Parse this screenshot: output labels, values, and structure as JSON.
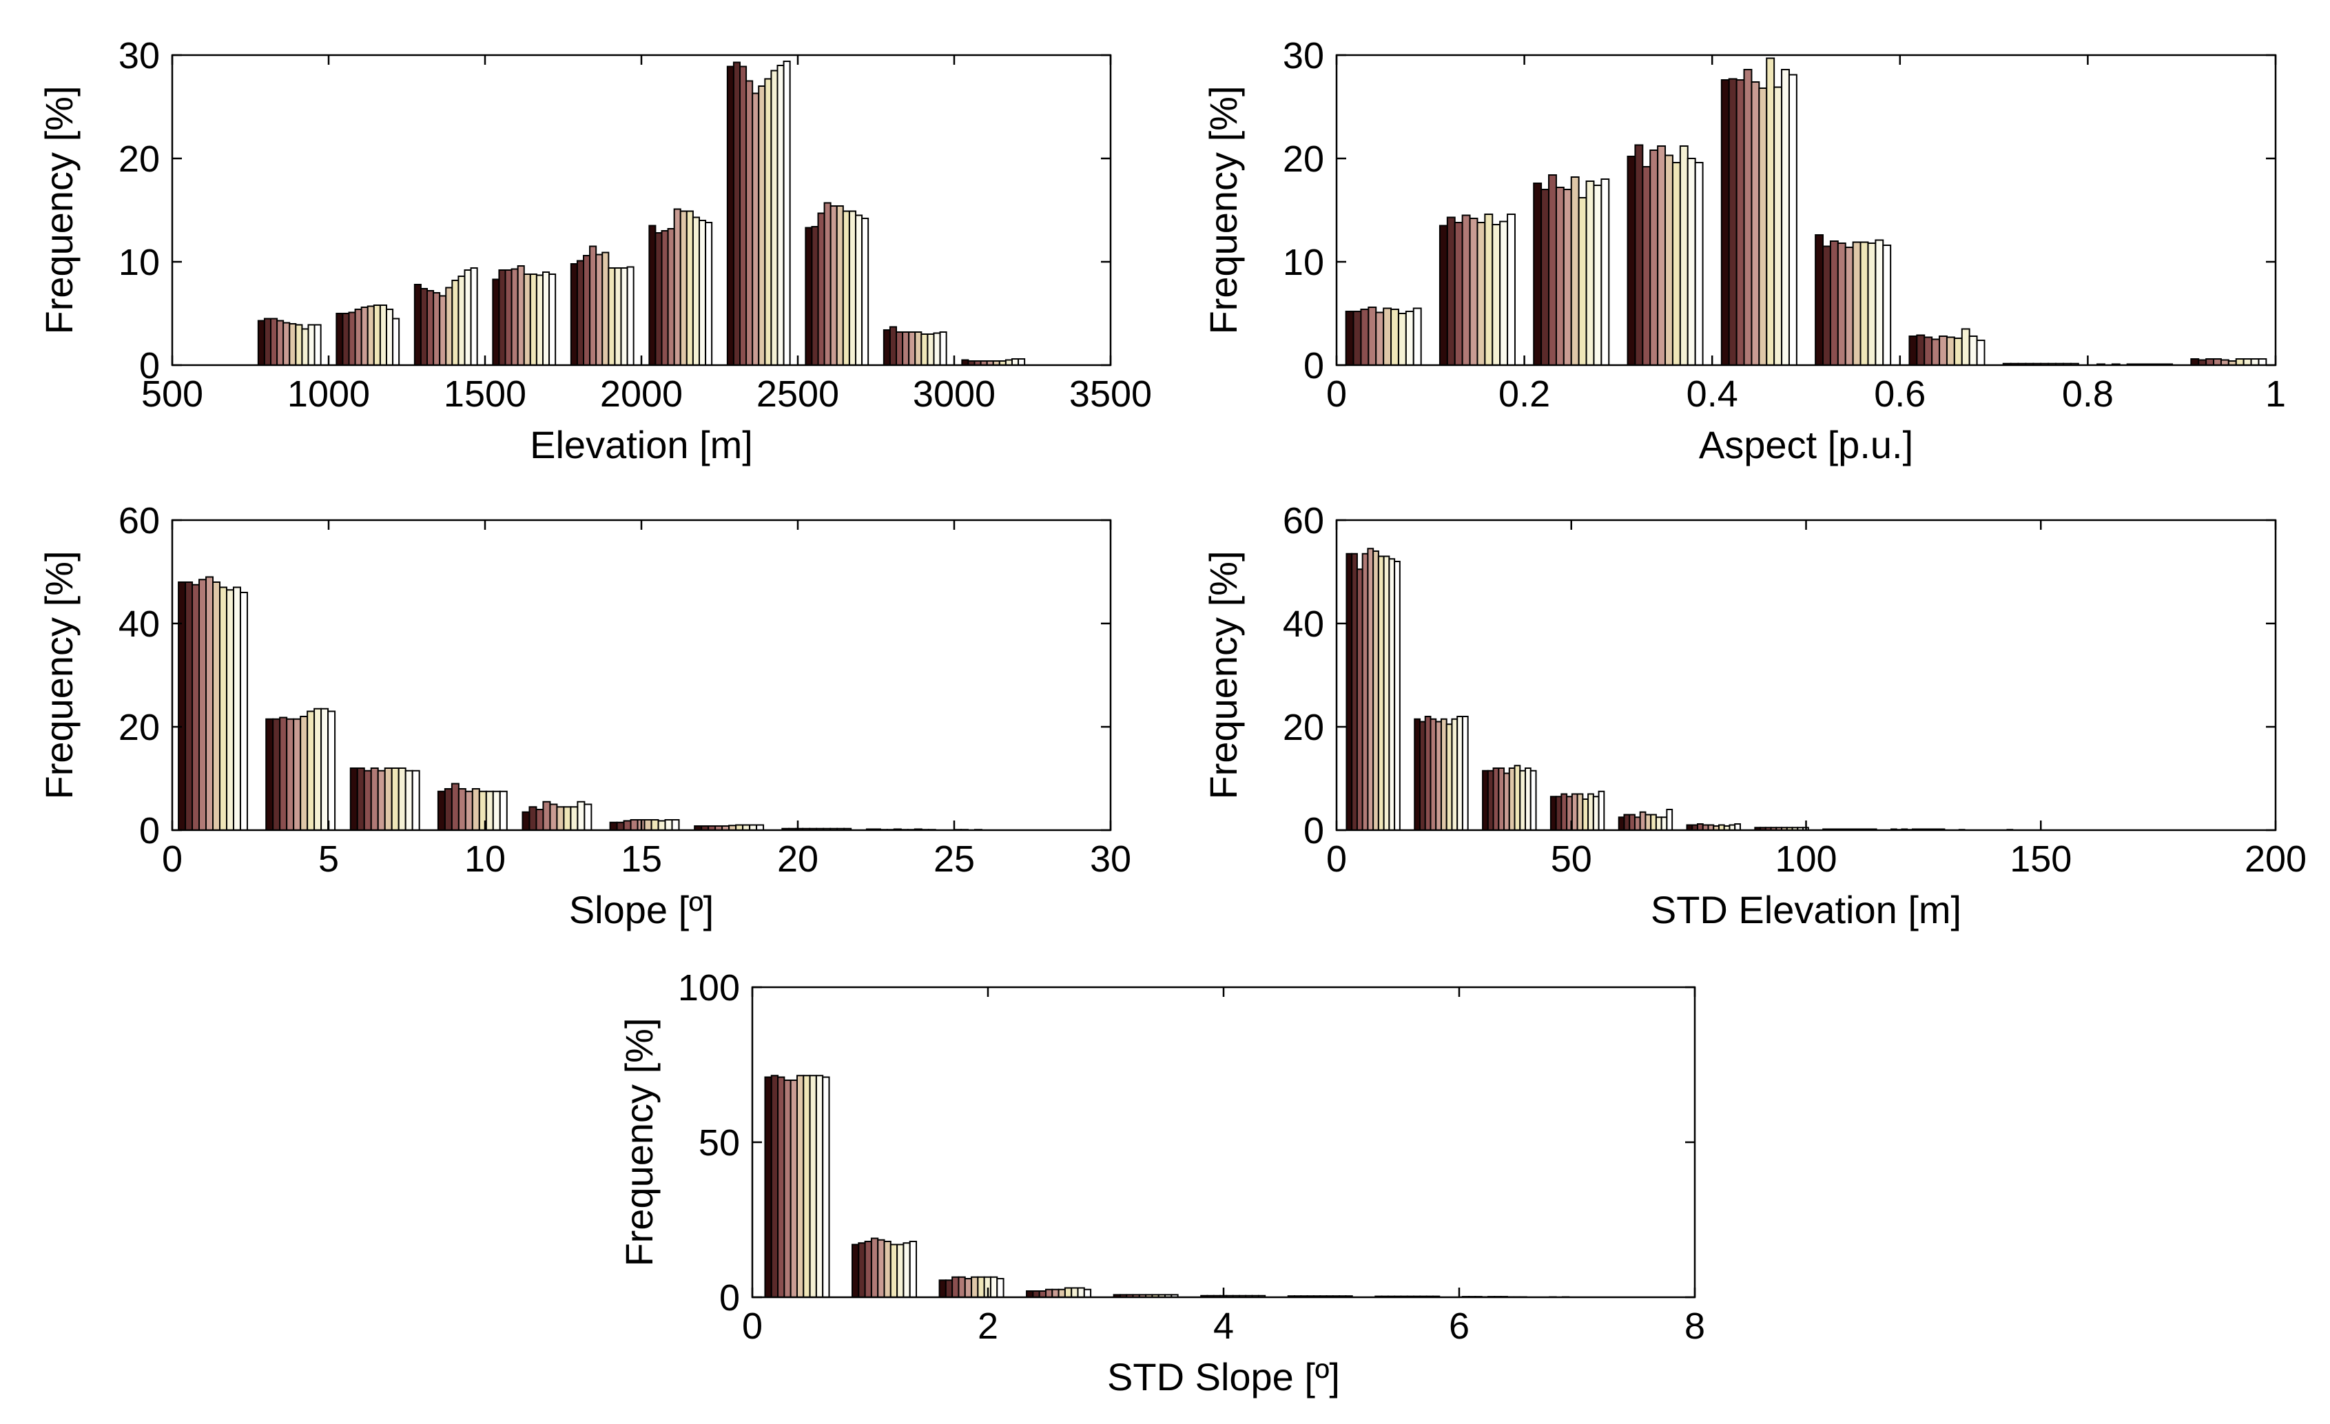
{
  "series_colors": [
    "#2a0808",
    "#5a2a2a",
    "#8a4f4f",
    "#b07a76",
    "#c99c93",
    "#dfc7a8",
    "#efe6b8",
    "#f5f1d4",
    "#fbfaee",
    "#ffffff"
  ],
  "chart_data": [
    {
      "id": "elevation",
      "type": "bar",
      "xlabel": "Elevation [m]",
      "ylabel": "Frequency [%]",
      "xlim": [
        500,
        3500
      ],
      "ylim": [
        0,
        30
      ],
      "xticks": [
        500,
        1000,
        1500,
        2000,
        2500,
        3000,
        3500
      ],
      "xtick_labels": [
        "500",
        "1000",
        "1500",
        "2000",
        "2500",
        "3000",
        "3500"
      ],
      "yticks": [
        0,
        10,
        20,
        30
      ],
      "ytick_labels": [
        "0",
        "10",
        "20",
        "30"
      ],
      "bin_width": 250,
      "bins": [
        {
          "center": 875,
          "values": [
            4.3,
            4.5,
            4.5,
            4.3,
            4.1,
            4.0,
            3.9,
            3.5,
            3.9,
            3.9
          ]
        },
        {
          "center": 1125,
          "values": [
            5.0,
            5.0,
            5.1,
            5.4,
            5.6,
            5.7,
            5.8,
            5.8,
            5.4,
            4.5
          ]
        },
        {
          "center": 1375,
          "values": [
            7.8,
            7.4,
            7.2,
            7.0,
            6.7,
            7.5,
            8.2,
            8.6,
            9.2,
            9.4
          ]
        },
        {
          "center": 1625,
          "values": [
            8.3,
            9.2,
            9.2,
            9.3,
            9.6,
            8.8,
            8.8,
            8.7,
            9.0,
            8.8
          ]
        },
        {
          "center": 1875,
          "values": [
            9.8,
            10.1,
            10.6,
            11.5,
            10.7,
            10.9,
            9.4,
            9.4,
            9.4,
            9.5
          ]
        },
        {
          "center": 2125,
          "values": [
            13.5,
            12.8,
            13.0,
            13.2,
            15.1,
            14.9,
            14.9,
            14.3,
            14.0,
            13.8
          ]
        },
        {
          "center": 2375,
          "values": [
            28.9,
            29.3,
            28.9,
            27.5,
            26.3,
            27.0,
            27.7,
            28.5,
            29.0,
            29.4
          ]
        },
        {
          "center": 2625,
          "values": [
            13.3,
            13.4,
            14.7,
            15.7,
            15.4,
            15.4,
            14.9,
            14.9,
            14.5,
            14.2
          ]
        },
        {
          "center": 2875,
          "values": [
            3.4,
            3.7,
            3.2,
            3.2,
            3.2,
            3.2,
            3.0,
            3.0,
            3.1,
            3.2
          ]
        },
        {
          "center": 3125,
          "values": [
            0.5,
            0.4,
            0.4,
            0.4,
            0.4,
            0.4,
            0.4,
            0.5,
            0.6,
            0.6
          ]
        }
      ]
    },
    {
      "id": "aspect",
      "type": "bar",
      "xlabel": "Aspect [p.u.]",
      "ylabel": "Frequency [%]",
      "xlim": [
        0,
        1
      ],
      "ylim": [
        0,
        30
      ],
      "xticks": [
        0,
        0.2,
        0.4,
        0.6,
        0.8,
        1
      ],
      "xtick_labels": [
        "0",
        "0.2",
        "0.4",
        "0.6",
        "0.8",
        "1"
      ],
      "yticks": [
        0,
        10,
        20,
        30
      ],
      "ytick_labels": [
        "0",
        "10",
        "20",
        "30"
      ],
      "bin_width": 0.1,
      "bins": [
        {
          "center": 0.05,
          "values": [
            5.2,
            5.2,
            5.4,
            5.6,
            5.1,
            5.5,
            5.4,
            5.0,
            5.2,
            5.5
          ]
        },
        {
          "center": 0.15,
          "values": [
            13.5,
            14.3,
            13.8,
            14.5,
            14.2,
            13.8,
            14.6,
            13.6,
            13.9,
            14.6
          ]
        },
        {
          "center": 0.25,
          "values": [
            17.6,
            17.0,
            18.4,
            17.2,
            17.0,
            18.2,
            16.2,
            17.8,
            17.4,
            18.0
          ]
        },
        {
          "center": 0.35,
          "values": [
            20.2,
            21.3,
            19.2,
            20.8,
            21.2,
            20.3,
            19.6,
            21.2,
            20.0,
            19.6
          ]
        },
        {
          "center": 0.45,
          "values": [
            27.6,
            27.7,
            27.6,
            28.6,
            27.4,
            26.8,
            29.7,
            26.9,
            28.6,
            28.1
          ]
        },
        {
          "center": 0.55,
          "values": [
            12.6,
            11.5,
            12.0,
            11.8,
            11.4,
            11.9,
            11.9,
            11.8,
            12.1,
            11.6
          ]
        },
        {
          "center": 0.65,
          "values": [
            2.8,
            2.9,
            2.7,
            2.5,
            2.8,
            2.7,
            2.6,
            3.5,
            2.8,
            2.4
          ]
        },
        {
          "center": 0.75,
          "values": [
            0.15,
            0.15,
            0.15,
            0.15,
            0.15,
            0.15,
            0.15,
            0.15,
            0.15,
            0.15
          ]
        },
        {
          "center": 0.85,
          "values": [
            0.1,
            0.0,
            0.1,
            0.0,
            0.1,
            0.1,
            0.1,
            0.1,
            0.1,
            0.1
          ]
        },
        {
          "center": 0.95,
          "values": [
            0.6,
            0.5,
            0.6,
            0.6,
            0.5,
            0.4,
            0.6,
            0.6,
            0.6,
            0.6
          ]
        }
      ]
    },
    {
      "id": "slope",
      "type": "bar",
      "xlabel": "Slope [º]",
      "ylabel": "Frequency [%]",
      "xlim": [
        0,
        30
      ],
      "ylim": [
        0,
        60
      ],
      "xticks": [
        0,
        5,
        10,
        15,
        20,
        25,
        30
      ],
      "xtick_labels": [
        "0",
        "5",
        "10",
        "15",
        "20",
        "25",
        "30"
      ],
      "yticks": [
        0,
        20,
        40,
        60
      ],
      "ytick_labels": [
        "0",
        "20",
        "40",
        "60"
      ],
      "bin_width": 2.75,
      "bins": [
        {
          "center": 1.3,
          "values": [
            48,
            48,
            47.5,
            48.5,
            49,
            48,
            47,
            46.5,
            47,
            46
          ]
        },
        {
          "center": 4.1,
          "values": [
            21.5,
            21.5,
            21.8,
            21.5,
            21.5,
            22,
            23,
            23.5,
            23.5,
            23
          ]
        },
        {
          "center": 6.8,
          "values": [
            12,
            12,
            11.5,
            12,
            11.5,
            12,
            12,
            12,
            11.5,
            11.5
          ]
        },
        {
          "center": 9.6,
          "values": [
            7.5,
            8,
            9,
            8,
            7.5,
            8,
            7.5,
            7.5,
            7.5,
            7.5
          ]
        },
        {
          "center": 12.3,
          "values": [
            3.5,
            4.5,
            4,
            5.5,
            5,
            4.5,
            4.5,
            4.5,
            5.5,
            5
          ]
        },
        {
          "center": 15.1,
          "values": [
            1.5,
            1.5,
            1.8,
            2,
            2,
            2,
            2,
            1.8,
            2,
            2
          ]
        },
        {
          "center": 17.8,
          "values": [
            0.8,
            0.8,
            0.8,
            0.8,
            0.8,
            0.9,
            1,
            1,
            1,
            1
          ]
        },
        {
          "center": 20.6,
          "values": [
            0.3,
            0.3,
            0.3,
            0.3,
            0.3,
            0.3,
            0.3,
            0.3,
            0.3,
            0.3
          ]
        },
        {
          "center": 23.3,
          "values": [
            0.2,
            0.2,
            0.1,
            0.1,
            0.2,
            0.1,
            0.1,
            0.2,
            0.1,
            0.1
          ]
        },
        {
          "center": 26.1,
          "values": [
            0.1,
            0.1,
            0.0,
            0.1,
            0.0,
            0.0,
            0.0,
            0.0,
            0.0,
            0.0
          ]
        }
      ]
    },
    {
      "id": "std_elevation",
      "type": "bar",
      "xlabel": "STD Elevation [m]",
      "ylabel": "Frequency [%]",
      "xlim": [
        0,
        200
      ],
      "ylim": [
        0,
        60
      ],
      "xticks": [
        0,
        50,
        100,
        150,
        200
      ],
      "xtick_labels": [
        "0",
        "50",
        "100",
        "150",
        "200"
      ],
      "yticks": [
        0,
        20,
        40,
        60
      ],
      "ytick_labels": [
        "0",
        "20",
        "40",
        "60"
      ],
      "bin_width": 14.2,
      "bins": [
        {
          "center": 7.8,
          "values": [
            53.5,
            53.5,
            50.5,
            53.5,
            54.5,
            54,
            53,
            53,
            52.5,
            52
          ]
        },
        {
          "center": 22.3,
          "values": [
            21.5,
            21,
            22,
            21.5,
            21,
            21.5,
            20.5,
            21.5,
            22,
            22
          ]
        },
        {
          "center": 36.8,
          "values": [
            11.5,
            11.5,
            12,
            12,
            11,
            12,
            12.5,
            11.5,
            12,
            11.5
          ]
        },
        {
          "center": 51.3,
          "values": [
            6.5,
            6.5,
            7,
            6.5,
            7,
            7,
            6,
            7,
            6.5,
            7.5
          ]
        },
        {
          "center": 65.8,
          "values": [
            2.5,
            3,
            3,
            2.5,
            3.5,
            3,
            3,
            2.5,
            2.5,
            4
          ]
        },
        {
          "center": 80.3,
          "values": [
            1,
            1,
            1.2,
            1,
            1,
            0.8,
            1,
            0.8,
            1,
            1.2
          ]
        },
        {
          "center": 94.8,
          "values": [
            0.5,
            0.5,
            0.5,
            0.5,
            0.5,
            0.5,
            0.5,
            0.5,
            0.5,
            0.5
          ]
        },
        {
          "center": 109.3,
          "values": [
            0.2,
            0.2,
            0.2,
            0.2,
            0.2,
            0.2,
            0.2,
            0.2,
            0.2,
            0.2
          ]
        },
        {
          "center": 123.8,
          "values": [
            0.2,
            0.1,
            0.2,
            0.1,
            0.2,
            0.2,
            0.2,
            0.2,
            0.2,
            0.2
          ]
        },
        {
          "center": 138.3,
          "values": [
            0.1,
            0.0,
            0.0,
            0.0,
            0.0,
            0.0,
            0.0,
            0.0,
            0.0,
            0.1
          ]
        }
      ]
    },
    {
      "id": "std_slope",
      "type": "bar",
      "xlabel": "STD Slope [º]",
      "ylabel": "Frequency [%]",
      "xlim": [
        0,
        8
      ],
      "ylim": [
        0,
        100
      ],
      "xticks": [
        0,
        2,
        4,
        6,
        8
      ],
      "xtick_labels": [
        "0",
        "2",
        "4",
        "6",
        "8"
      ],
      "yticks": [
        0,
        50,
        100
      ],
      "ytick_labels": [
        "0",
        "50",
        "100"
      ],
      "bin_width": 0.68,
      "bins": [
        {
          "center": 0.38,
          "values": [
            71,
            71.5,
            71,
            70,
            70,
            71.5,
            71.5,
            71.5,
            71.5,
            71
          ]
        },
        {
          "center": 1.12,
          "values": [
            17,
            17.5,
            18,
            19,
            18.5,
            18,
            17,
            17,
            17.5,
            18
          ]
        },
        {
          "center": 1.86,
          "values": [
            5.5,
            5.5,
            6.5,
            6.5,
            6,
            6.5,
            6.5,
            6.5,
            6.5,
            6
          ]
        },
        {
          "center": 2.6,
          "values": [
            2,
            2,
            2,
            2.5,
            2.5,
            2.5,
            3,
            3,
            3,
            2.5
          ]
        },
        {
          "center": 3.34,
          "values": [
            0.8,
            0.8,
            0.8,
            0.8,
            0.8,
            0.8,
            0.8,
            0.8,
            0.8,
            0.8
          ]
        },
        {
          "center": 4.08,
          "values": [
            0.5,
            0.5,
            0.5,
            0.5,
            0.5,
            0.5,
            0.5,
            0.5,
            0.5,
            0.5
          ]
        },
        {
          "center": 4.82,
          "values": [
            0.4,
            0.4,
            0.4,
            0.4,
            0.4,
            0.4,
            0.4,
            0.4,
            0.4,
            0.4
          ]
        },
        {
          "center": 5.56,
          "values": [
            0.3,
            0.3,
            0.3,
            0.3,
            0.3,
            0.3,
            0.3,
            0.3,
            0.3,
            0.3
          ]
        },
        {
          "center": 6.3,
          "values": [
            0.2,
            0.2,
            0.2,
            0.1,
            0.2,
            0.2,
            0.2,
            0.1,
            0.1,
            0.1
          ]
        },
        {
          "center": 7.04,
          "values": [
            0.1,
            0.0,
            0.1,
            0.0,
            0.0,
            0.0,
            0.0,
            0.0,
            0.0,
            0.0
          ]
        }
      ]
    }
  ]
}
